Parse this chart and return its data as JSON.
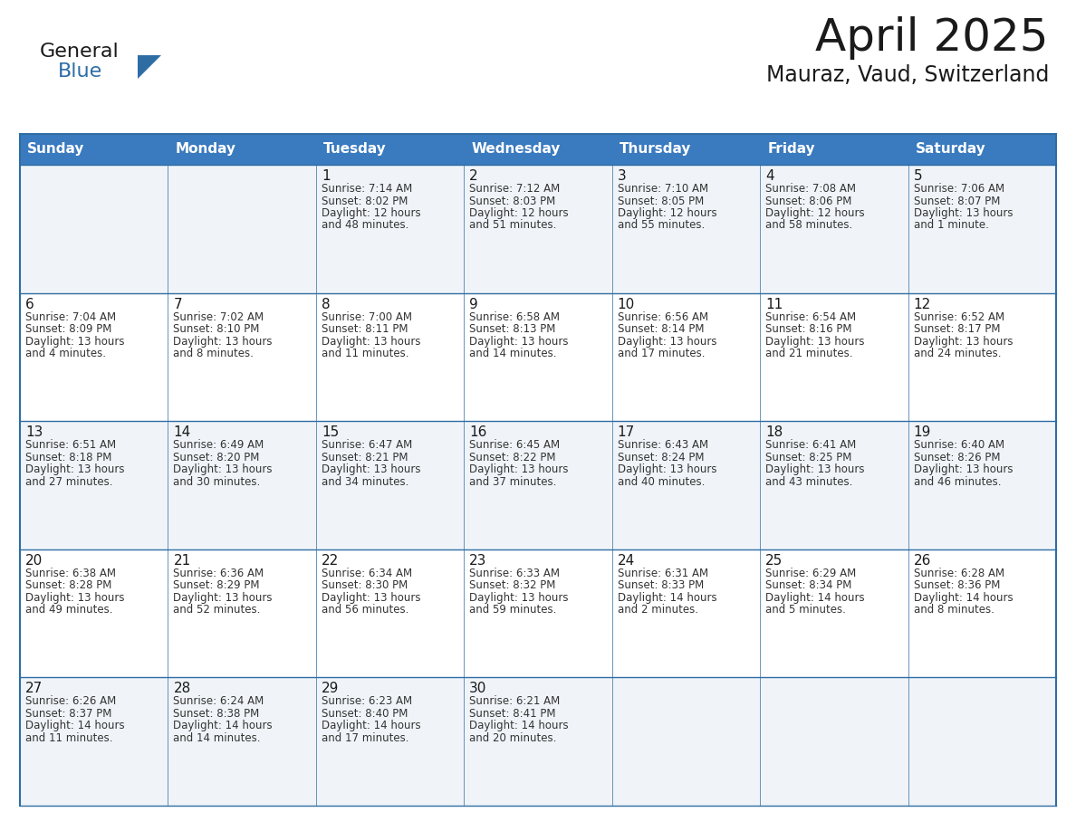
{
  "title": "April 2025",
  "subtitle": "Mauraz, Vaud, Switzerland",
  "header_bg": "#3a7abf",
  "header_text_color": "#ffffff",
  "row_bg_odd": "#f0f4f8",
  "row_bg_even": "#ffffff",
  "border_color": "#2e6da4",
  "text_color": "#1a1a1a",
  "info_color": "#333333",
  "day_headers": [
    "Sunday",
    "Monday",
    "Tuesday",
    "Wednesday",
    "Thursday",
    "Friday",
    "Saturday"
  ],
  "calendar": [
    [
      {
        "day": "",
        "info": ""
      },
      {
        "day": "",
        "info": ""
      },
      {
        "day": "1",
        "info": "Sunrise: 7:14 AM\nSunset: 8:02 PM\nDaylight: 12 hours\nand 48 minutes."
      },
      {
        "day": "2",
        "info": "Sunrise: 7:12 AM\nSunset: 8:03 PM\nDaylight: 12 hours\nand 51 minutes."
      },
      {
        "day": "3",
        "info": "Sunrise: 7:10 AM\nSunset: 8:05 PM\nDaylight: 12 hours\nand 55 minutes."
      },
      {
        "day": "4",
        "info": "Sunrise: 7:08 AM\nSunset: 8:06 PM\nDaylight: 12 hours\nand 58 minutes."
      },
      {
        "day": "5",
        "info": "Sunrise: 7:06 AM\nSunset: 8:07 PM\nDaylight: 13 hours\nand 1 minute."
      }
    ],
    [
      {
        "day": "6",
        "info": "Sunrise: 7:04 AM\nSunset: 8:09 PM\nDaylight: 13 hours\nand 4 minutes."
      },
      {
        "day": "7",
        "info": "Sunrise: 7:02 AM\nSunset: 8:10 PM\nDaylight: 13 hours\nand 8 minutes."
      },
      {
        "day": "8",
        "info": "Sunrise: 7:00 AM\nSunset: 8:11 PM\nDaylight: 13 hours\nand 11 minutes."
      },
      {
        "day": "9",
        "info": "Sunrise: 6:58 AM\nSunset: 8:13 PM\nDaylight: 13 hours\nand 14 minutes."
      },
      {
        "day": "10",
        "info": "Sunrise: 6:56 AM\nSunset: 8:14 PM\nDaylight: 13 hours\nand 17 minutes."
      },
      {
        "day": "11",
        "info": "Sunrise: 6:54 AM\nSunset: 8:16 PM\nDaylight: 13 hours\nand 21 minutes."
      },
      {
        "day": "12",
        "info": "Sunrise: 6:52 AM\nSunset: 8:17 PM\nDaylight: 13 hours\nand 24 minutes."
      }
    ],
    [
      {
        "day": "13",
        "info": "Sunrise: 6:51 AM\nSunset: 8:18 PM\nDaylight: 13 hours\nand 27 minutes."
      },
      {
        "day": "14",
        "info": "Sunrise: 6:49 AM\nSunset: 8:20 PM\nDaylight: 13 hours\nand 30 minutes."
      },
      {
        "day": "15",
        "info": "Sunrise: 6:47 AM\nSunset: 8:21 PM\nDaylight: 13 hours\nand 34 minutes."
      },
      {
        "day": "16",
        "info": "Sunrise: 6:45 AM\nSunset: 8:22 PM\nDaylight: 13 hours\nand 37 minutes."
      },
      {
        "day": "17",
        "info": "Sunrise: 6:43 AM\nSunset: 8:24 PM\nDaylight: 13 hours\nand 40 minutes."
      },
      {
        "day": "18",
        "info": "Sunrise: 6:41 AM\nSunset: 8:25 PM\nDaylight: 13 hours\nand 43 minutes."
      },
      {
        "day": "19",
        "info": "Sunrise: 6:40 AM\nSunset: 8:26 PM\nDaylight: 13 hours\nand 46 minutes."
      }
    ],
    [
      {
        "day": "20",
        "info": "Sunrise: 6:38 AM\nSunset: 8:28 PM\nDaylight: 13 hours\nand 49 minutes."
      },
      {
        "day": "21",
        "info": "Sunrise: 6:36 AM\nSunset: 8:29 PM\nDaylight: 13 hours\nand 52 minutes."
      },
      {
        "day": "22",
        "info": "Sunrise: 6:34 AM\nSunset: 8:30 PM\nDaylight: 13 hours\nand 56 minutes."
      },
      {
        "day": "23",
        "info": "Sunrise: 6:33 AM\nSunset: 8:32 PM\nDaylight: 13 hours\nand 59 minutes."
      },
      {
        "day": "24",
        "info": "Sunrise: 6:31 AM\nSunset: 8:33 PM\nDaylight: 14 hours\nand 2 minutes."
      },
      {
        "day": "25",
        "info": "Sunrise: 6:29 AM\nSunset: 8:34 PM\nDaylight: 14 hours\nand 5 minutes."
      },
      {
        "day": "26",
        "info": "Sunrise: 6:28 AM\nSunset: 8:36 PM\nDaylight: 14 hours\nand 8 minutes."
      }
    ],
    [
      {
        "day": "27",
        "info": "Sunrise: 6:26 AM\nSunset: 8:37 PM\nDaylight: 14 hours\nand 11 minutes."
      },
      {
        "day": "28",
        "info": "Sunrise: 6:24 AM\nSunset: 8:38 PM\nDaylight: 14 hours\nand 14 minutes."
      },
      {
        "day": "29",
        "info": "Sunrise: 6:23 AM\nSunset: 8:40 PM\nDaylight: 14 hours\nand 17 minutes."
      },
      {
        "day": "30",
        "info": "Sunrise: 6:21 AM\nSunset: 8:41 PM\nDaylight: 14 hours\nand 20 minutes."
      },
      {
        "day": "",
        "info": ""
      },
      {
        "day": "",
        "info": ""
      },
      {
        "day": "",
        "info": ""
      }
    ]
  ],
  "logo_text_general": "General",
  "logo_text_blue": "Blue",
  "logo_color_general": "#1a1a1a",
  "logo_color_blue": "#2e6da4",
  "logo_triangle_color": "#2e6da4",
  "title_fontsize": 36,
  "subtitle_fontsize": 17,
  "header_fontsize": 11,
  "day_num_fontsize": 11,
  "info_fontsize": 8.5
}
